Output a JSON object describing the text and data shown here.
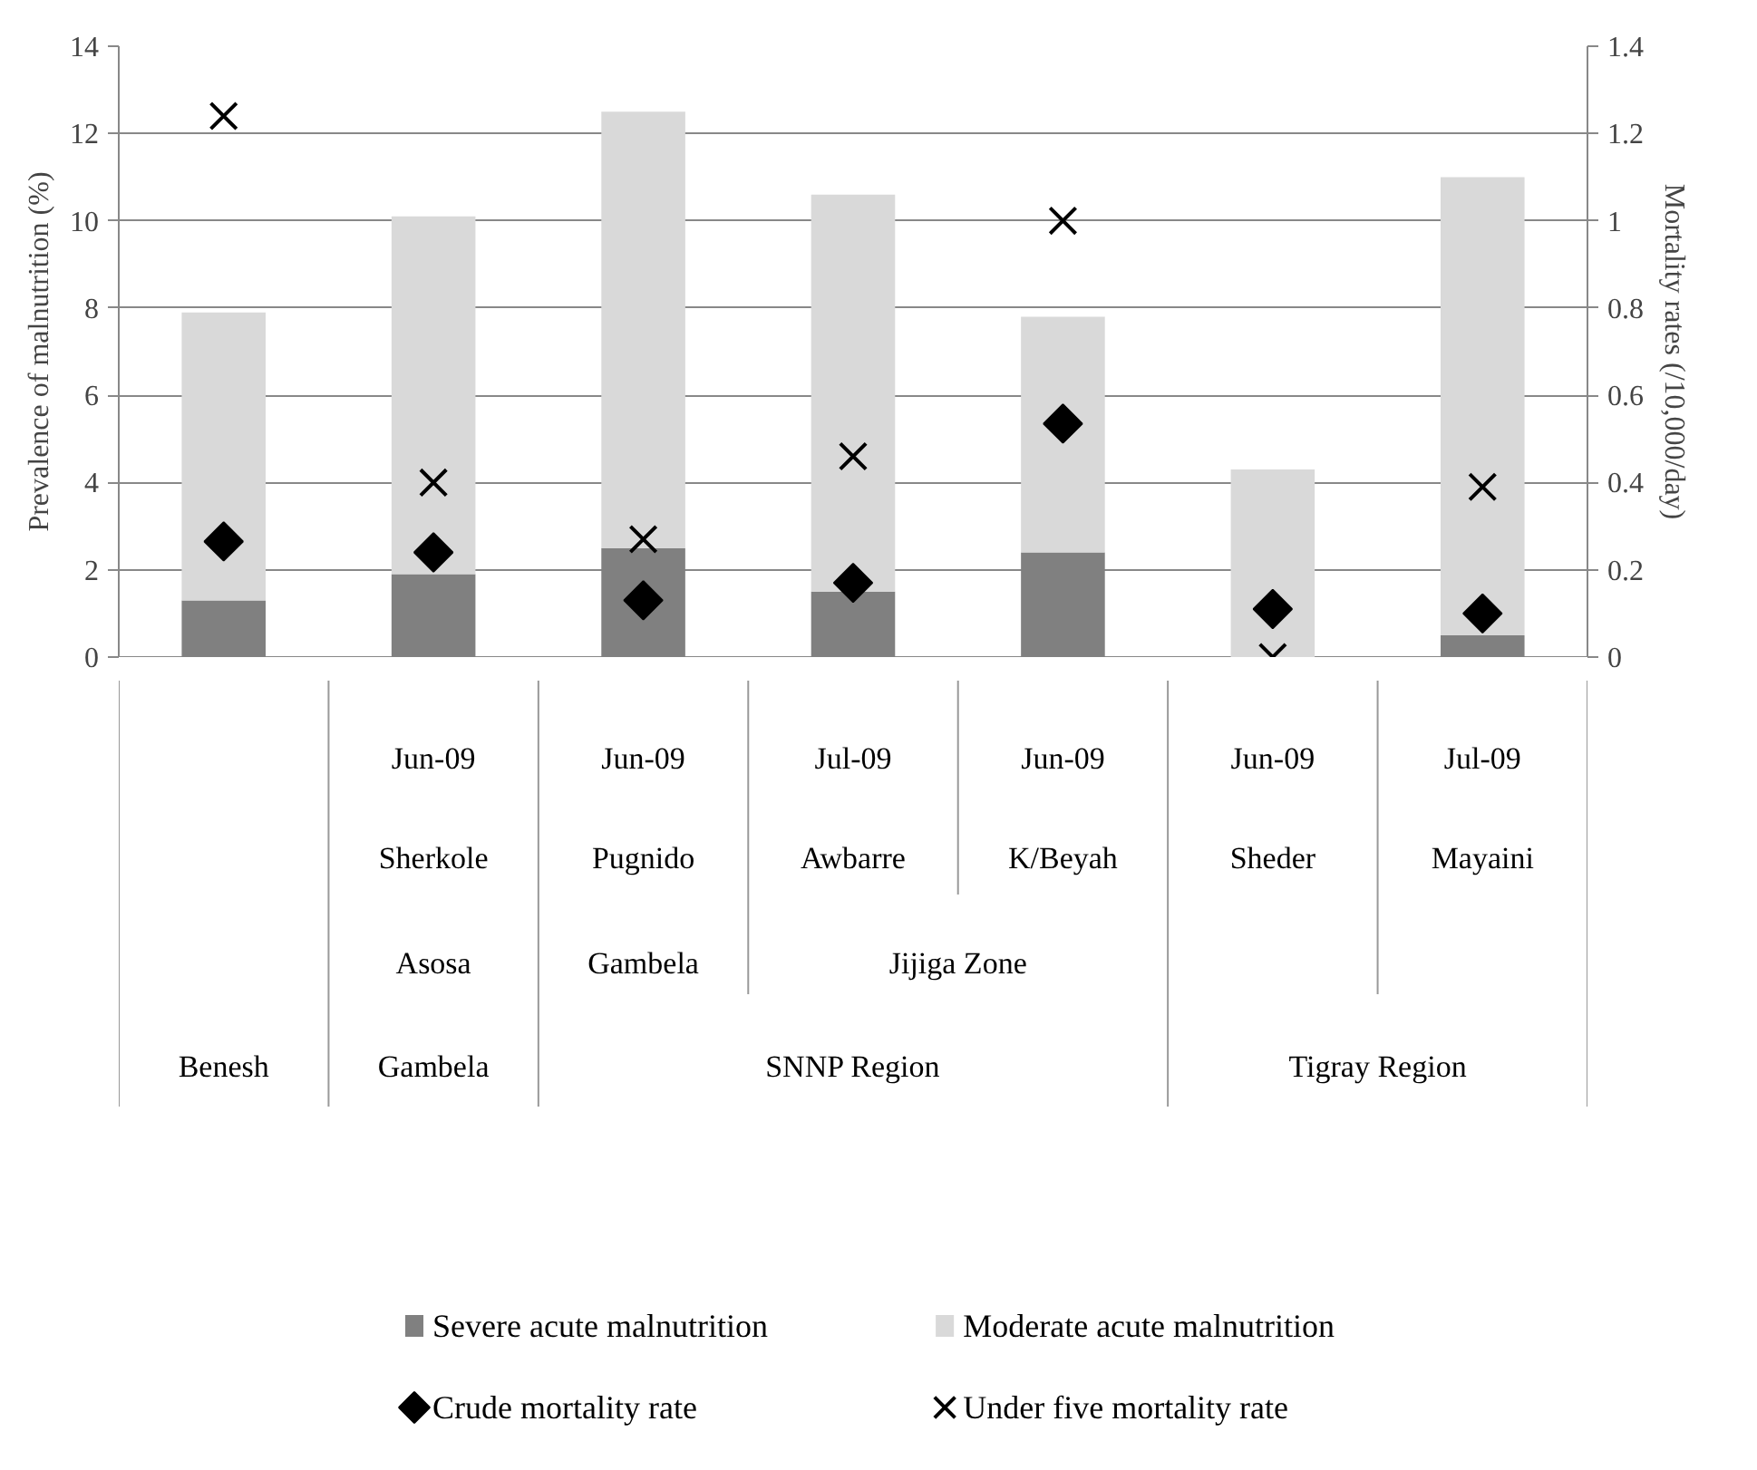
{
  "chart_data": {
    "type": "bar",
    "stacked": true,
    "categories": [
      null,
      "Sherkole",
      "Pugnido",
      "Awbarre",
      "K/Beyah",
      "Sheder",
      "Mayaini"
    ],
    "annotations": [
      "Jun-09",
      "Jun-09",
      "Jul-09",
      "Jun-09",
      "Jun-09",
      "Jul-09",
      "Asosa",
      "Gambela",
      "Jijiga Zone",
      "Benesh",
      "Gambela",
      "SNNP Region",
      "Tigray Region"
    ],
    "ylabel": "Prevalence of malnutrition (%)",
    "y2label": "Mortality rates (/10,000/day)",
    "ylim": [
      0,
      14
    ],
    "yticks": [
      0,
      2,
      4,
      6,
      8,
      10,
      12,
      14
    ],
    "y2lim": [
      0,
      1.4
    ],
    "y2ticks": [
      0,
      0.2,
      0.4,
      0.6,
      0.8,
      1,
      1.2,
      1.4
    ],
    "grid": "y",
    "legend": "bottom",
    "series": [
      {
        "name": "Severe acute malnutrition",
        "color": "#808080",
        "values": [
          1.3,
          1.9,
          2.5,
          1.5,
          2.4,
          0,
          0.5
        ]
      },
      {
        "name": "Moderate acute malnutrition",
        "color": "#d9d9d9",
        "values": [
          6.6,
          8.2,
          10.0,
          9.1,
          5.4,
          4.3,
          10.5
        ]
      },
      {
        "name": "Crude mortality rate",
        "type": "scatter",
        "axis": "y2",
        "marker": "diamond",
        "color": "#000000",
        "values": [
          0.265,
          0.24,
          0.13,
          0.17,
          0.535,
          0.11,
          0.1
        ]
      },
      {
        "name": "Under five mortality rate",
        "type": "scatter",
        "axis": "y2",
        "marker": "cross",
        "color": "#000000",
        "values": [
          1.24,
          0.4,
          0.27,
          0.46,
          1.0,
          0.0,
          0.39
        ]
      }
    ]
  }
}
